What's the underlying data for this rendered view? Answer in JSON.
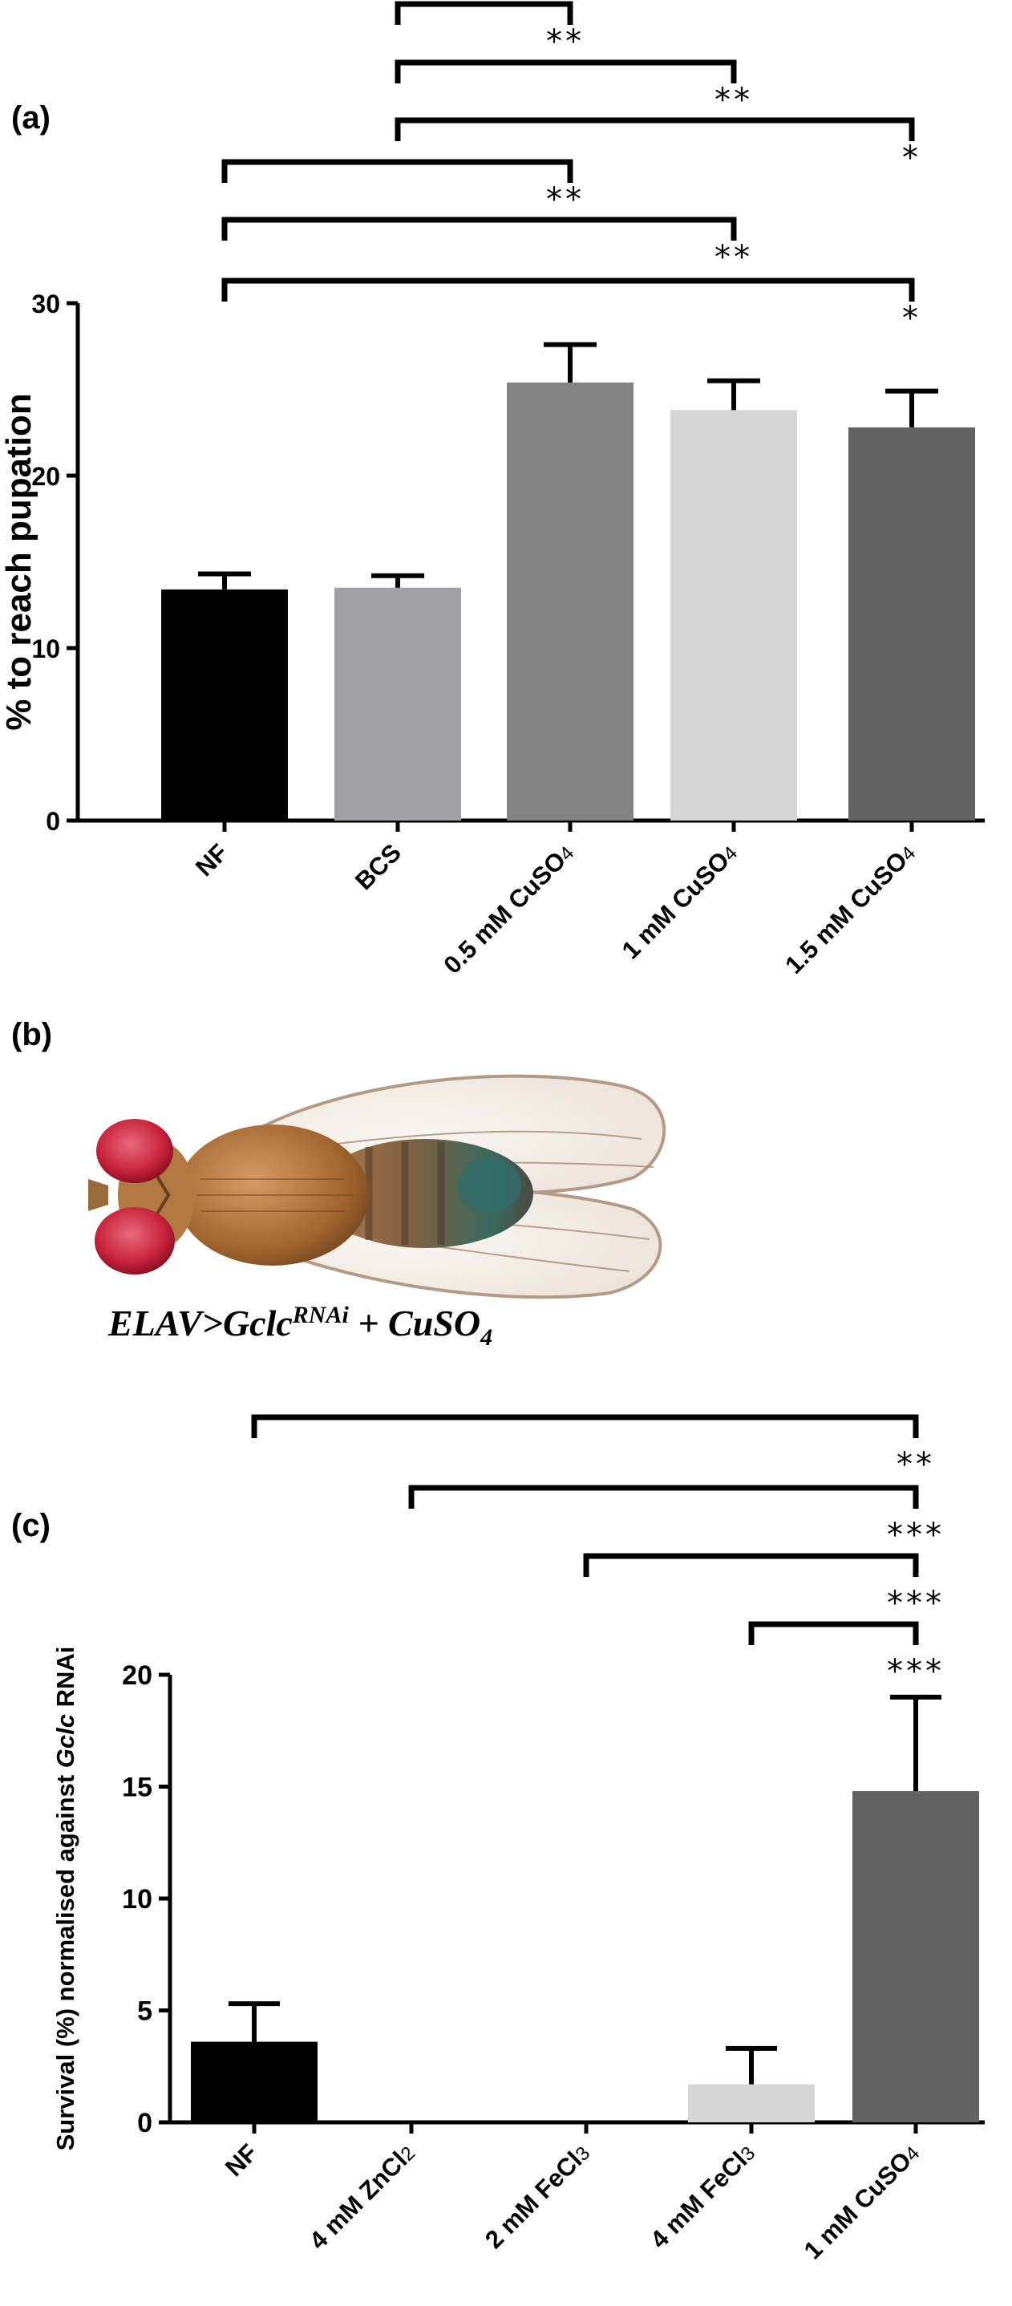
{
  "panels": {
    "a_label": "(a)",
    "b_label": "(b)",
    "c_label": "(c)"
  },
  "photo_caption": {
    "main": "ELAV>Gclc",
    "sup": "RNAi",
    "mid": " + CuSO",
    "sub": "4"
  },
  "chart_data": [
    {
      "type": "bar",
      "panel": "(a)",
      "ylabel": "% to reach pupation",
      "ylim": [
        0,
        30
      ],
      "yticks": [
        0,
        10,
        20,
        30
      ],
      "categories": [
        {
          "text": "NF",
          "sub": ""
        },
        {
          "text": "BCS",
          "sub": ""
        },
        {
          "text": "0.5 mM CuSO",
          "sub": "4"
        },
        {
          "text": "1 mM CuSO",
          "sub": "4"
        },
        {
          "text": "1.5 mM CuSO",
          "sub": "4"
        }
      ],
      "values": [
        13.4,
        13.5,
        25.4,
        23.8,
        22.8
      ],
      "errors": [
        0.9,
        0.7,
        2.2,
        1.7,
        2.1
      ],
      "colors": [
        "#000000",
        "#a1a1a5",
        "#838383",
        "#d6d6d6",
        "#626262"
      ],
      "significance": [
        {
          "from": 1,
          "to": 2,
          "label": "**"
        },
        {
          "from": 1,
          "to": 3,
          "label": "**"
        },
        {
          "from": 1,
          "to": 4,
          "label": "*"
        },
        {
          "from": 0,
          "to": 2,
          "label": "**"
        },
        {
          "from": 0,
          "to": 3,
          "label": "**"
        },
        {
          "from": 0,
          "to": 4,
          "label": "*"
        }
      ]
    },
    {
      "type": "bar",
      "panel": "(c)",
      "ylabel_parts": [
        "Survival (%) normalised against ",
        "Gclc",
        " RNAi"
      ],
      "ylim": [
        0,
        20
      ],
      "yticks": [
        0,
        5,
        10,
        15,
        20
      ],
      "categories": [
        {
          "text": "NF",
          "sub": ""
        },
        {
          "text": "4 mM ZnCl",
          "sub": "2"
        },
        {
          "text": "2 mM FeCl",
          "sub": "3"
        },
        {
          "text": "4 mM FeCl",
          "sub": "3"
        },
        {
          "text": "1 mM CuSO",
          "sub": "4"
        }
      ],
      "values": [
        3.6,
        0,
        0,
        1.7,
        14.8
      ],
      "errors": [
        1.7,
        0,
        0,
        1.6,
        4.2
      ],
      "colors": [
        "#000000",
        "#a1a1a5",
        "#838383",
        "#d6d6d6",
        "#626262"
      ],
      "significance": [
        {
          "from": 0,
          "to": 4,
          "label": "**"
        },
        {
          "from": 1,
          "to": 4,
          "label": "***"
        },
        {
          "from": 2,
          "to": 4,
          "label": "***"
        },
        {
          "from": 3,
          "to": 4,
          "label": "***"
        }
      ]
    }
  ]
}
